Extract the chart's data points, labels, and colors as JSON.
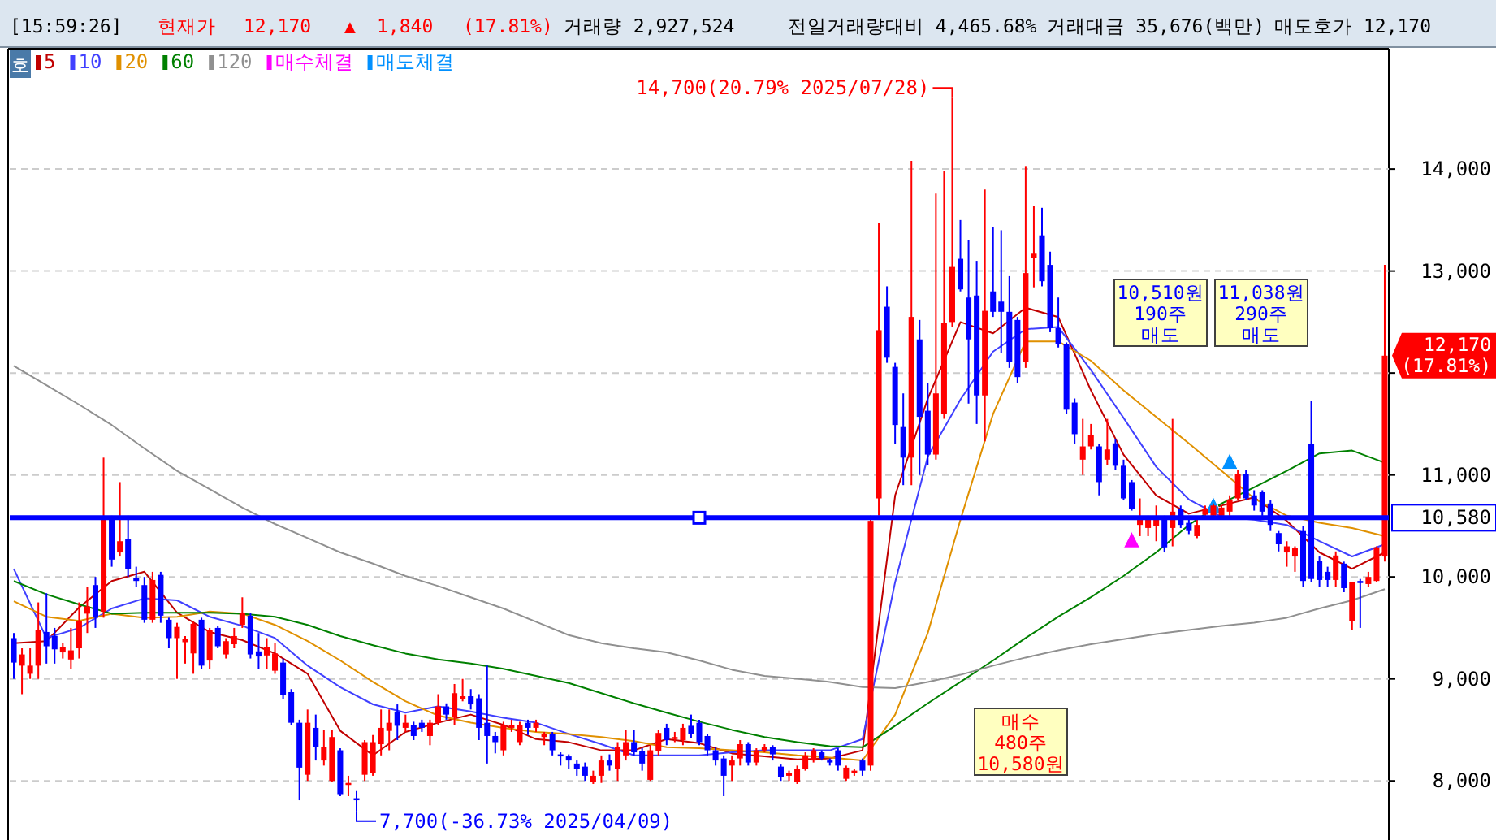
{
  "chart_data": {
    "type": "candlestick",
    "categories": [
      null,
      null,
      null,
      null,
      null,
      null,
      null,
      null,
      null,
      null,
      null,
      null,
      null,
      null,
      null,
      null,
      null,
      null,
      null,
      null,
      null,
      null,
      null,
      null,
      null,
      null,
      null,
      null,
      null,
      null,
      null,
      null,
      null,
      null,
      null,
      null,
      null,
      null,
      null,
      null,
      null,
      null,
      null,
      null,
      null,
      null,
      null,
      null,
      null,
      null,
      null,
      null,
      null,
      null,
      null,
      null,
      null,
      null,
      null,
      null,
      null,
      null,
      null,
      null,
      null,
      null,
      null,
      null,
      null,
      null,
      null,
      null,
      null,
      null,
      null,
      null,
      null,
      null,
      null,
      null,
      null,
      null,
      null,
      null,
      null,
      null,
      null,
      null,
      null,
      null,
      null,
      null,
      null,
      null,
      null,
      null,
      null,
      null,
      null,
      null,
      null,
      null,
      null,
      null,
      null,
      null,
      null,
      null,
      null,
      null,
      null,
      null,
      null,
      null,
      null,
      null,
      null,
      null,
      null,
      null,
      null,
      null,
      null,
      null,
      null,
      null,
      null,
      null,
      null,
      null,
      null,
      null,
      null,
      null,
      null,
      null,
      null,
      null,
      null,
      null,
      null,
      null,
      null,
      null,
      null,
      null,
      null,
      null,
      null,
      null,
      null,
      null,
      null,
      null,
      null,
      null,
      null,
      null,
      null,
      null,
      null,
      null,
      null,
      null,
      null,
      null,
      null,
      null,
      null
    ],
    "ohlc": [
      [
        9400,
        9450,
        9000,
        9160
      ],
      [
        9130,
        9300,
        8850,
        9240
      ],
      [
        9050,
        9300,
        9000,
        9130
      ],
      [
        9130,
        9750,
        9000,
        9480
      ],
      [
        9460,
        9840,
        9150,
        9320
      ],
      [
        9420,
        9500,
        9150,
        9290
      ],
      [
        9260,
        9350,
        9200,
        9310
      ],
      [
        9190,
        9500,
        9100,
        9280
      ],
      [
        9300,
        9750,
        9200,
        9570
      ],
      [
        9640,
        9900,
        9450,
        9710
      ],
      [
        9920,
        10000,
        9500,
        9600
      ],
      [
        9660,
        11170,
        9600,
        10560
      ],
      [
        10560,
        10600,
        10100,
        10170
      ],
      [
        10240,
        10930,
        10200,
        10350
      ],
      [
        10370,
        10600,
        10000,
        10080
      ],
      [
        9990,
        10100,
        9900,
        9960
      ],
      [
        9920,
        10000,
        9550,
        9580
      ],
      [
        9580,
        10050,
        9550,
        9970
      ],
      [
        10020,
        10050,
        9550,
        9620
      ],
      [
        9580,
        9600,
        9300,
        9400
      ],
      [
        9400,
        9550,
        9000,
        9510
      ],
      [
        9360,
        9420,
        9150,
        9390
      ],
      [
        9250,
        9560,
        9050,
        9540
      ],
      [
        9580,
        9600,
        9100,
        9130
      ],
      [
        9180,
        9500,
        9100,
        9480
      ],
      [
        9500,
        9520,
        9300,
        9320
      ],
      [
        9240,
        9400,
        9200,
        9370
      ],
      [
        9340,
        9500,
        9300,
        9420
      ],
      [
        9530,
        9800,
        9500,
        9650
      ],
      [
        9620,
        9650,
        9200,
        9240
      ],
      [
        9270,
        9450,
        9100,
        9220
      ],
      [
        9230,
        9400,
        9100,
        9310
      ],
      [
        9080,
        9350,
        9050,
        9250
      ],
      [
        9160,
        9200,
        8800,
        8840
      ],
      [
        8870,
        8900,
        8550,
        8570
      ],
      [
        8570,
        8600,
        7810,
        8130
      ],
      [
        8060,
        8700,
        8000,
        8570
      ],
      [
        8520,
        8650,
        8200,
        8330
      ],
      [
        8200,
        8500,
        8150,
        8330
      ],
      [
        8000,
        8500,
        7990,
        8430
      ],
      [
        8300,
        8320,
        7850,
        7870
      ],
      [
        7960,
        8050,
        7850,
        7980
      ],
      [
        7830,
        7900,
        7700,
        7810
      ],
      [
        8060,
        8400,
        8000,
        8380
      ],
      [
        8080,
        8450,
        8050,
        8380
      ],
      [
        8360,
        8700,
        8250,
        8520
      ],
      [
        8490,
        8700,
        8300,
        8570
      ],
      [
        8680,
        8750,
        8400,
        8540
      ],
      [
        8520,
        8650,
        8480,
        8570
      ],
      [
        8550,
        8580,
        8400,
        8440
      ],
      [
        8570,
        8600,
        8480,
        8520
      ],
      [
        8440,
        8600,
        8350,
        8570
      ],
      [
        8570,
        8850,
        8550,
        8730
      ],
      [
        8730,
        8760,
        8600,
        8650
      ],
      [
        8620,
        8950,
        8550,
        8860
      ],
      [
        8800,
        9000,
        8780,
        8830
      ],
      [
        8830,
        8900,
        8700,
        8750
      ],
      [
        8810,
        8850,
        8400,
        8520
      ],
      [
        8570,
        9130,
        8170,
        8440
      ],
      [
        8440,
        8480,
        8270,
        8380
      ],
      [
        8300,
        8580,
        8250,
        8550
      ],
      [
        8520,
        8600,
        8480,
        8550
      ],
      [
        8380,
        8580,
        8350,
        8550
      ],
      [
        8570,
        8600,
        8450,
        8520
      ],
      [
        8520,
        8600,
        8480,
        8570
      ],
      [
        8430,
        8480,
        8350,
        8460
      ],
      [
        8460,
        8480,
        8250,
        8300
      ],
      [
        8260,
        8280,
        8150,
        8240
      ],
      [
        8240,
        8260,
        8120,
        8200
      ],
      [
        8170,
        8200,
        8050,
        8120
      ],
      [
        8140,
        8180,
        8000,
        8050
      ],
      [
        7990,
        8100,
        7970,
        8050
      ],
      [
        8050,
        8250,
        7980,
        8200
      ],
      [
        8200,
        8260,
        8100,
        8150
      ],
      [
        8120,
        8380,
        8000,
        8330
      ],
      [
        8250,
        8500,
        8200,
        8380
      ],
      [
        8380,
        8500,
        8250,
        8280
      ],
      [
        8290,
        8320,
        8100,
        8170
      ],
      [
        8010,
        8350,
        8000,
        8300
      ],
      [
        8290,
        8500,
        8250,
        8470
      ],
      [
        8520,
        8560,
        8350,
        8400
      ],
      [
        8410,
        8480,
        8380,
        8430
      ],
      [
        8400,
        8560,
        8350,
        8520
      ],
      [
        8540,
        8650,
        8420,
        8460
      ],
      [
        8570,
        8600,
        8350,
        8380
      ],
      [
        8440,
        8460,
        8250,
        8300
      ],
      [
        8300,
        8330,
        8150,
        8200
      ],
      [
        8220,
        8250,
        7850,
        8050
      ],
      [
        8150,
        8250,
        8000,
        8200
      ],
      [
        8220,
        8400,
        8150,
        8360
      ],
      [
        8360,
        8380,
        8150,
        8180
      ],
      [
        8180,
        8320,
        8150,
        8300
      ],
      [
        8300,
        8360,
        8280,
        8330
      ],
      [
        8330,
        8350,
        8200,
        8260
      ],
      [
        8140,
        8160,
        8000,
        8040
      ],
      [
        8050,
        8100,
        8000,
        8080
      ],
      [
        7990,
        8150,
        7970,
        8120
      ],
      [
        8120,
        8280,
        8100,
        8250
      ],
      [
        8200,
        8320,
        8180,
        8300
      ],
      [
        8280,
        8300,
        8200,
        8220
      ],
      [
        8200,
        8220,
        8150,
        8180
      ],
      [
        8300,
        8320,
        8100,
        8150
      ],
      [
        8020,
        8150,
        8000,
        8130
      ],
      [
        8080,
        8120,
        8050,
        8100
      ],
      [
        8200,
        8220,
        8050,
        8100
      ],
      [
        8150,
        10600,
        8100,
        10550
      ],
      [
        10770,
        13470,
        10600,
        12420
      ],
      [
        12650,
        12850,
        12100,
        12150
      ],
      [
        12060,
        12100,
        11300,
        11490
      ],
      [
        11470,
        11800,
        10900,
        11170
      ],
      [
        11170,
        14080,
        10900,
        12550
      ],
      [
        12330,
        12520,
        11000,
        11570
      ],
      [
        11630,
        11900,
        11100,
        11200
      ],
      [
        11200,
        13760,
        11150,
        11800
      ],
      [
        11600,
        13980,
        11550,
        12490
      ],
      [
        12500,
        14700,
        12450,
        13040
      ],
      [
        13120,
        13500,
        12800,
        12820
      ],
      [
        12740,
        13300,
        11700,
        12330
      ],
      [
        12760,
        13100,
        11500,
        11780
      ],
      [
        11780,
        13800,
        11330,
        12610
      ],
      [
        12800,
        13430,
        12550,
        12600
      ],
      [
        12700,
        13400,
        12200,
        12600
      ],
      [
        12600,
        12950,
        12050,
        12110
      ],
      [
        12520,
        12550,
        11900,
        11960
      ],
      [
        12110,
        14030,
        12050,
        12980
      ],
      [
        13130,
        13640,
        12840,
        13170
      ],
      [
        13350,
        13620,
        12850,
        12900
      ],
      [
        13060,
        13190,
        12400,
        12440
      ],
      [
        12440,
        12740,
        12250,
        12280
      ],
      [
        12280,
        12300,
        11600,
        11640
      ],
      [
        11710,
        11750,
        11300,
        11400
      ],
      [
        11150,
        11550,
        11000,
        11280
      ],
      [
        11280,
        11500,
        11250,
        11390
      ],
      [
        11280,
        11300,
        10800,
        10930
      ],
      [
        11150,
        11550,
        11100,
        11250
      ],
      [
        11310,
        11350,
        11050,
        11090
      ],
      [
        11090,
        11150,
        10750,
        10770
      ],
      [
        10930,
        10950,
        10650,
        10670
      ],
      [
        10510,
        10770,
        10400,
        10560
      ],
      [
        10480,
        10600,
        10400,
        10560
      ],
      [
        10500,
        10700,
        10350,
        10560
      ],
      [
        10560,
        10600,
        10240,
        10290
      ],
      [
        10480,
        11550,
        10300,
        10640
      ],
      [
        10670,
        10700,
        10480,
        10510
      ],
      [
        10530,
        10560,
        10420,
        10450
      ],
      [
        10400,
        10560,
        10380,
        10510
      ],
      [
        10610,
        10700,
        10580,
        10670
      ],
      [
        10600,
        10720,
        10580,
        10700
      ],
      [
        10600,
        10700,
        10560,
        10680
      ],
      [
        10640,
        10800,
        10600,
        10760
      ],
      [
        10770,
        11050,
        10750,
        11010
      ],
      [
        11010,
        11050,
        10750,
        10770
      ],
      [
        10800,
        10850,
        10650,
        10700
      ],
      [
        10830,
        10850,
        10600,
        10640
      ],
      [
        10720,
        10750,
        10450,
        10510
      ],
      [
        10430,
        10450,
        10250,
        10320
      ],
      [
        10240,
        10350,
        10100,
        10300
      ],
      [
        10200,
        10300,
        10050,
        10280
      ],
      [
        10450,
        10500,
        9900,
        9960
      ],
      [
        11300,
        11730,
        9950,
        9980
      ],
      [
        10160,
        10200,
        9900,
        9970
      ],
      [
        10050,
        10100,
        9900,
        9970
      ],
      [
        9970,
        10250,
        9900,
        10210
      ],
      [
        10130,
        10150,
        9850,
        9890
      ],
      [
        9570,
        9950,
        9480,
        9950
      ],
      [
        9960,
        9980,
        9500,
        9940
      ],
      [
        9930,
        10050,
        9900,
        10000
      ],
      [
        9960,
        10300,
        9950,
        10290
      ],
      [
        10200,
        13060,
        10150,
        12170
      ]
    ],
    "colors": [
      "#0000ff",
      "#ff0000",
      "#ff0000",
      "#ff0000",
      "#0000ff",
      "#0000ff",
      "#ff0000",
      "#ff0000",
      "#ff0000",
      "#ff0000",
      "#0000ff",
      "#ff0000",
      "#0000ff",
      "#ff0000",
      "#0000ff",
      "#0000ff",
      "#0000ff",
      "#ff0000",
      "#0000ff",
      "#0000ff",
      "#ff0000",
      "#ff0000",
      "#ff0000",
      "#0000ff",
      "#ff0000",
      "#0000ff",
      "#ff0000",
      "#ff0000",
      "#ff0000",
      "#0000ff",
      "#0000ff",
      "#ff0000",
      "#ff0000",
      "#0000ff",
      "#0000ff",
      "#0000ff",
      "#ff0000",
      "#0000ff",
      "#ff0000",
      "#ff0000",
      "#0000ff",
      "#ff0000",
      "#0000ff",
      "#ff0000",
      "#ff0000",
      "#ff0000",
      "#ff0000",
      "#0000ff",
      "#ff0000",
      "#0000ff",
      "#0000ff",
      "#ff0000",
      "#ff0000",
      "#0000ff",
      "#ff0000",
      "#ff0000",
      "#0000ff",
      "#0000ff",
      "#0000ff",
      "#0000ff",
      "#ff0000",
      "#ff0000",
      "#ff0000",
      "#0000ff",
      "#ff0000",
      "#ff0000",
      "#0000ff",
      "#0000ff",
      "#0000ff",
      "#0000ff",
      "#0000ff",
      "#ff0000",
      "#ff0000",
      "#0000ff",
      "#ff0000",
      "#ff0000",
      "#0000ff",
      "#0000ff",
      "#ff0000",
      "#ff0000",
      "#0000ff",
      "#ff0000",
      "#ff0000",
      "#0000ff",
      "#0000ff",
      "#0000ff",
      "#0000ff",
      "#0000ff",
      "#ff0000",
      "#ff0000",
      "#0000ff",
      "#ff0000",
      "#ff0000",
      "#0000ff",
      "#0000ff",
      "#ff0000",
      "#ff0000",
      "#ff0000",
      "#ff0000",
      "#0000ff",
      "#0000ff",
      "#0000ff",
      "#ff0000",
      "#ff0000",
      "#0000ff",
      "#ff0000",
      "#ff0000",
      "#0000ff",
      "#0000ff",
      "#0000ff",
      "#ff0000",
      "#0000ff",
      "#0000ff",
      "#ff0000",
      "#ff0000",
      "#ff0000",
      "#0000ff",
      "#0000ff",
      "#0000ff",
      "#ff0000",
      "#0000ff",
      "#0000ff",
      "#0000ff",
      "#0000ff",
      "#ff0000",
      "#ff0000",
      "#0000ff",
      "#0000ff",
      "#0000ff",
      "#0000ff",
      "#0000ff",
      "#ff0000",
      "#ff0000",
      "#0000ff",
      "#ff0000",
      "#0000ff",
      "#0000ff",
      "#0000ff",
      "#ff0000",
      "#ff0000",
      "#ff0000",
      "#0000ff",
      "#ff0000",
      "#0000ff",
      "#0000ff",
      "#ff0000",
      "#ff0000",
      "#ff0000",
      "#ff0000",
      "#ff0000",
      "#ff0000",
      "#0000ff",
      "#0000ff",
      "#0000ff",
      "#0000ff",
      "#0000ff",
      "#ff0000",
      "#ff0000",
      "#0000ff",
      "#0000ff",
      "#0000ff",
      "#0000ff",
      "#ff0000",
      "#0000ff",
      "#ff0000",
      "#0000ff",
      "#ff0000",
      "#ff0000",
      "#ff0000"
    ],
    "series": [
      {
        "name": "5",
        "type": "line",
        "color": "#c00000",
        "values": [
          9350,
          null,
          null,
          null,
          9370,
          null,
          null,
          null,
          9700,
          null,
          null,
          null,
          9960,
          null,
          null,
          null,
          10050,
          null,
          null,
          null,
          9650,
          null,
          null,
          null,
          9460,
          null,
          null,
          null,
          9380,
          null,
          null,
          null,
          9250,
          null,
          null,
          null,
          9050,
          null,
          null,
          null,
          8490,
          null,
          null,
          null,
          8250,
          null,
          null,
          null,
          8480,
          null,
          null,
          null,
          8570,
          null,
          null,
          null,
          8650,
          null,
          null,
          null,
          8550,
          null,
          null,
          null,
          8410,
          null,
          null,
          null,
          8380,
          null,
          null,
          null,
          8300,
          null,
          null,
          null,
          8300,
          null,
          null,
          null,
          8410,
          null,
          null,
          null,
          8370,
          null,
          null,
          null,
          8270,
          null,
          null,
          null,
          8240,
          null,
          null,
          null,
          8210,
          null,
          null,
          null,
          8220,
          null,
          null,
          null,
          8300,
          null,
          null,
          null,
          10800,
          null,
          null,
          null,
          11750,
          null,
          null,
          null,
          12500,
          null,
          null,
          null,
          12390,
          null,
          null,
          null,
          12640,
          null,
          null,
          null,
          12550,
          null,
          null,
          null,
          11830,
          null,
          null,
          null,
          11200,
          null,
          null,
          null,
          10800,
          null,
          null,
          null,
          10620,
          null,
          null,
          null,
          10700,
          null,
          null,
          null,
          10780,
          null,
          null,
          null,
          10550,
          null,
          null,
          null,
          10240,
          null,
          null,
          null,
          10080,
          null,
          null,
          null,
          10240
        ]
      },
      {
        "name": "10",
        "type": "line",
        "color": "#4040ff",
        "values": [
          10080,
          null,
          null,
          null,
          9400,
          null,
          null,
          null,
          9500,
          null,
          null,
          null,
          9690,
          null,
          null,
          null,
          9790,
          null,
          null,
          null,
          9770,
          null,
          null,
          null,
          9610,
          null,
          null,
          null,
          9520,
          null,
          null,
          null,
          9400,
          null,
          null,
          null,
          9130,
          null,
          null,
          null,
          8920,
          null,
          null,
          null,
          8750,
          null,
          null,
          null,
          8670,
          null,
          null,
          null,
          8730,
          null,
          null,
          null,
          8680,
          null,
          null,
          null,
          8620,
          null,
          null,
          null,
          8570,
          null,
          null,
          null,
          8460,
          null,
          null,
          null,
          8360,
          null,
          null,
          null,
          8250,
          null,
          null,
          null,
          8250,
          null,
          null,
          null,
          8250,
          null,
          null,
          null,
          8280,
          null,
          null,
          null,
          8300,
          null,
          null,
          null,
          8300,
          null,
          null,
          null,
          8300,
          null,
          null,
          null,
          8410,
          null,
          null,
          null,
          9950,
          null,
          null,
          null,
          11180,
          null,
          null,
          null,
          11740,
          null,
          null,
          null,
          12210,
          null,
          null,
          null,
          12430,
          null,
          null,
          null,
          12450,
          null,
          null,
          null,
          12030,
          null,
          null,
          null,
          11560,
          null,
          null,
          null,
          11080,
          null,
          null,
          null,
          10760,
          null,
          null,
          null,
          10590,
          null,
          null,
          null,
          10560,
          null,
          null,
          null,
          10510,
          null,
          null,
          null,
          10350,
          null,
          null,
          null,
          10200,
          null,
          null,
          null,
          10320
        ]
      },
      {
        "name": "20",
        "type": "line",
        "color": "#e09000",
        "values": [
          9760,
          null,
          null,
          null,
          9610,
          null,
          null,
          null,
          9570,
          null,
          null,
          null,
          9640,
          null,
          null,
          null,
          9600,
          null,
          null,
          null,
          9610,
          null,
          null,
          null,
          9660,
          null,
          null,
          null,
          9640,
          null,
          null,
          null,
          9530,
          null,
          null,
          null,
          9370,
          null,
          null,
          null,
          9180,
          null,
          null,
          null,
          8970,
          null,
          null,
          null,
          8780,
          null,
          null,
          null,
          8640,
          null,
          null,
          null,
          8570,
          null,
          null,
          null,
          8520,
          null,
          null,
          null,
          8480,
          null,
          null,
          null,
          8460,
          null,
          null,
          null,
          8430,
          null,
          null,
          null,
          8390,
          null,
          null,
          null,
          8330,
          null,
          null,
          null,
          8320,
          null,
          null,
          null,
          8300,
          null,
          null,
          null,
          8280,
          null,
          null,
          null,
          8250,
          null,
          null,
          null,
          8230,
          null,
          null,
          null,
          8200,
          null,
          null,
          null,
          8650,
          null,
          null,
          null,
          9450,
          null,
          null,
          null,
          10560,
          null,
          null,
          null,
          11600,
          null,
          null,
          null,
          12310,
          null,
          null,
          null,
          12310,
          null,
          null,
          null,
          12120,
          null,
          null,
          null,
          11830,
          null,
          null,
          null,
          11570,
          null,
          null,
          null,
          11310,
          null,
          null,
          null,
          11040,
          null,
          null,
          null,
          10770,
          null,
          null,
          null,
          10600,
          null,
          null,
          null,
          10530,
          null,
          null,
          null,
          10480,
          null,
          null,
          null,
          10400
        ]
      },
      {
        "name": "60",
        "type": "line",
        "color": "#008000",
        "values": [
          9960,
          null,
          null,
          null,
          9830,
          null,
          null,
          null,
          9730,
          null,
          null,
          null,
          9640,
          null,
          null,
          null,
          9650,
          null,
          null,
          null,
          9650,
          null,
          null,
          null,
          9650,
          null,
          null,
          null,
          9640,
          null,
          null,
          null,
          9610,
          null,
          null,
          null,
          9530,
          null,
          null,
          null,
          9420,
          null,
          null,
          null,
          9330,
          null,
          null,
          null,
          9250,
          null,
          null,
          null,
          9190,
          null,
          null,
          null,
          9150,
          null,
          null,
          null,
          9100,
          null,
          null,
          null,
          9030,
          null,
          null,
          null,
          8960,
          null,
          null,
          null,
          8860,
          null,
          null,
          null,
          8760,
          null,
          null,
          null,
          8670,
          null,
          null,
          null,
          8580,
          null,
          null,
          null,
          8500,
          null,
          null,
          null,
          8430,
          null,
          null,
          null,
          8380,
          null,
          null,
          null,
          8340,
          null,
          null,
          null,
          8330,
          null,
          null,
          null,
          8540,
          null,
          null,
          null,
          8760,
          null,
          null,
          null,
          8970,
          null,
          null,
          null,
          9180,
          null,
          null,
          null,
          9400,
          null,
          null,
          null,
          9610,
          null,
          null,
          null,
          9800,
          null,
          null,
          null,
          10010,
          null,
          null,
          null,
          10240,
          null,
          null,
          null,
          10510,
          null,
          null,
          null,
          10720,
          null,
          null,
          null,
          10880,
          null,
          null,
          null,
          11040,
          null,
          null,
          null,
          11210,
          null,
          null,
          null,
          11240,
          null,
          null,
          null,
          11120
        ]
      },
      {
        "name": "120",
        "type": "line",
        "color": "#909090",
        "values": [
          12070,
          null,
          null,
          null,
          11880,
          null,
          null,
          null,
          11690,
          null,
          null,
          null,
          11490,
          null,
          null,
          null,
          11260,
          null,
          null,
          null,
          11040,
          null,
          null,
          null,
          10860,
          null,
          null,
          null,
          10680,
          null,
          null,
          null,
          10520,
          null,
          null,
          null,
          10380,
          null,
          null,
          null,
          10240,
          null,
          null,
          null,
          10130,
          null,
          null,
          null,
          10010,
          null,
          null,
          null,
          9910,
          null,
          null,
          null,
          9800,
          null,
          null,
          null,
          9690,
          null,
          null,
          null,
          9560,
          null,
          null,
          null,
          9430,
          null,
          null,
          null,
          9350,
          null,
          null,
          null,
          9300,
          null,
          null,
          null,
          9260,
          null,
          null,
          null,
          9180,
          null,
          null,
          null,
          9090,
          null,
          null,
          null,
          9030,
          null,
          null,
          null,
          9000,
          null,
          null,
          null,
          8970,
          null,
          null,
          null,
          8920,
          null,
          null,
          null,
          8910,
          null,
          null,
          null,
          8970,
          null,
          null,
          null,
          9040,
          null,
          null,
          null,
          9130,
          null,
          null,
          null,
          9210,
          null,
          null,
          null,
          9280,
          null,
          null,
          null,
          9340,
          null,
          null,
          null,
          9390,
          null,
          null,
          null,
          9440,
          null,
          null,
          null,
          9480,
          null,
          null,
          null,
          9520,
          null,
          null,
          null,
          9550,
          null,
          null,
          null,
          9600,
          null,
          null,
          null,
          9690,
          null,
          null,
          null,
          9770,
          null,
          null,
          null,
          9880
        ]
      },
      {
        "name": "매수체결",
        "type": "scatter",
        "marker": "triangle",
        "color": "#ff00ff",
        "values": [
          null,
          null,
          null,
          null,
          null,
          null,
          null,
          null,
          null,
          null,
          null,
          null,
          null,
          null,
          null,
          null,
          null,
          null,
          null,
          null,
          null,
          null,
          null,
          null,
          null,
          null,
          null,
          null,
          null,
          null,
          null,
          null,
          null,
          null,
          null,
          null,
          null,
          null,
          null,
          null,
          null,
          null,
          null,
          null,
          null,
          null,
          null,
          null,
          null,
          null,
          null,
          null,
          null,
          null,
          null,
          null,
          null,
          null,
          null,
          null,
          null,
          null,
          null,
          null,
          null,
          null,
          null,
          null,
          null,
          null,
          null,
          null,
          null,
          null,
          null,
          null,
          null,
          null,
          null,
          null,
          null,
          null,
          null,
          null,
          null,
          null,
          null,
          null,
          null,
          null,
          null,
          null,
          null,
          null,
          null,
          null,
          null,
          null,
          null,
          null,
          null,
          null,
          null,
          null,
          null,
          null,
          null,
          null,
          null,
          null,
          null,
          null,
          null,
          null,
          null,
          null,
          null,
          null,
          null,
          null,
          null,
          null,
          null,
          null,
          null,
          null,
          null,
          null,
          null,
          null,
          null,
          null,
          null,
          null,
          null,
          null,
          null,
          10350,
          null,
          null,
          null,
          null,
          null,
          null,
          null,
          null,
          null,
          null,
          null,
          null,
          null,
          null,
          null,
          null,
          null,
          null,
          null,
          null,
          null,
          null,
          null,
          null,
          null,
          null,
          null,
          null,
          null,
          null,
          null
        ]
      },
      {
        "name": "매도체결",
        "type": "scatter",
        "marker": "triangle",
        "color": "#0090ff",
        "values": [
          null,
          null,
          null,
          null,
          null,
          null,
          null,
          null,
          null,
          null,
          null,
          null,
          null,
          null,
          null,
          null,
          null,
          null,
          null,
          null,
          null,
          null,
          null,
          null,
          null,
          null,
          null,
          null,
          null,
          null,
          null,
          null,
          null,
          null,
          null,
          null,
          null,
          null,
          null,
          null,
          null,
          null,
          null,
          null,
          null,
          null,
          null,
          null,
          null,
          null,
          null,
          null,
          null,
          null,
          null,
          null,
          null,
          null,
          null,
          null,
          null,
          null,
          null,
          null,
          null,
          null,
          null,
          null,
          null,
          null,
          null,
          null,
          null,
          null,
          null,
          null,
          null,
          null,
          null,
          null,
          null,
          null,
          null,
          null,
          null,
          null,
          null,
          null,
          null,
          null,
          null,
          null,
          null,
          null,
          null,
          null,
          null,
          null,
          null,
          null,
          null,
          null,
          null,
          null,
          null,
          null,
          null,
          null,
          null,
          null,
          null,
          null,
          null,
          null,
          null,
          null,
          null,
          null,
          null,
          null,
          null,
          null,
          null,
          null,
          null,
          null,
          null,
          null,
          null,
          null,
          null,
          null,
          null,
          null,
          null,
          null,
          null,
          null,
          null,
          null,
          null,
          null,
          null,
          null,
          null,
          null,
          null,
          10690,
          null,
          11120,
          null,
          null,
          null,
          null,
          null,
          null,
          null,
          null,
          null,
          null,
          null,
          null,
          null,
          null,
          null,
          null,
          null,
          null,
          null
        ]
      }
    ],
    "ylim": [
      7420,
      15180
    ],
    "yticks": [
      {
        "value": 8000,
        "label": "8,000"
      },
      {
        "value": 9000,
        "label": "9,000"
      },
      {
        "value": 10000,
        "label": "10,000"
      },
      {
        "value": 11000,
        "label": "11,000"
      },
      {
        "value": 12000,
        "label": null
      },
      {
        "value": 13000,
        "label": "13,000"
      },
      {
        "value": 14000,
        "label": "14,000"
      }
    ],
    "grid": "y",
    "legend": "top left",
    "ref_lines": [
      {
        "axis": "y",
        "value": 10580,
        "label": "10,580",
        "color": "#0000ff"
      }
    ],
    "annotations": [
      "[15:59:26]",
      "현재가",
      "12,170",
      "▲",
      "1,840",
      "(17.81%)",
      "거래량 2,927,524",
      "전일거래량대비 4,465.68%",
      "거래대금 35,676(백만)",
      "매도호가 12,170",
      "호",
      "매수\n480주\n10,580원",
      "10,510원\n190주\n매도",
      "11,038원\n290주\n매도",
      "12,170\n(17.81%)",
      "14,700(20.79% 2025/07/28)",
      "7,700(-36.73% 2025/04/09)"
    ]
  }
}
